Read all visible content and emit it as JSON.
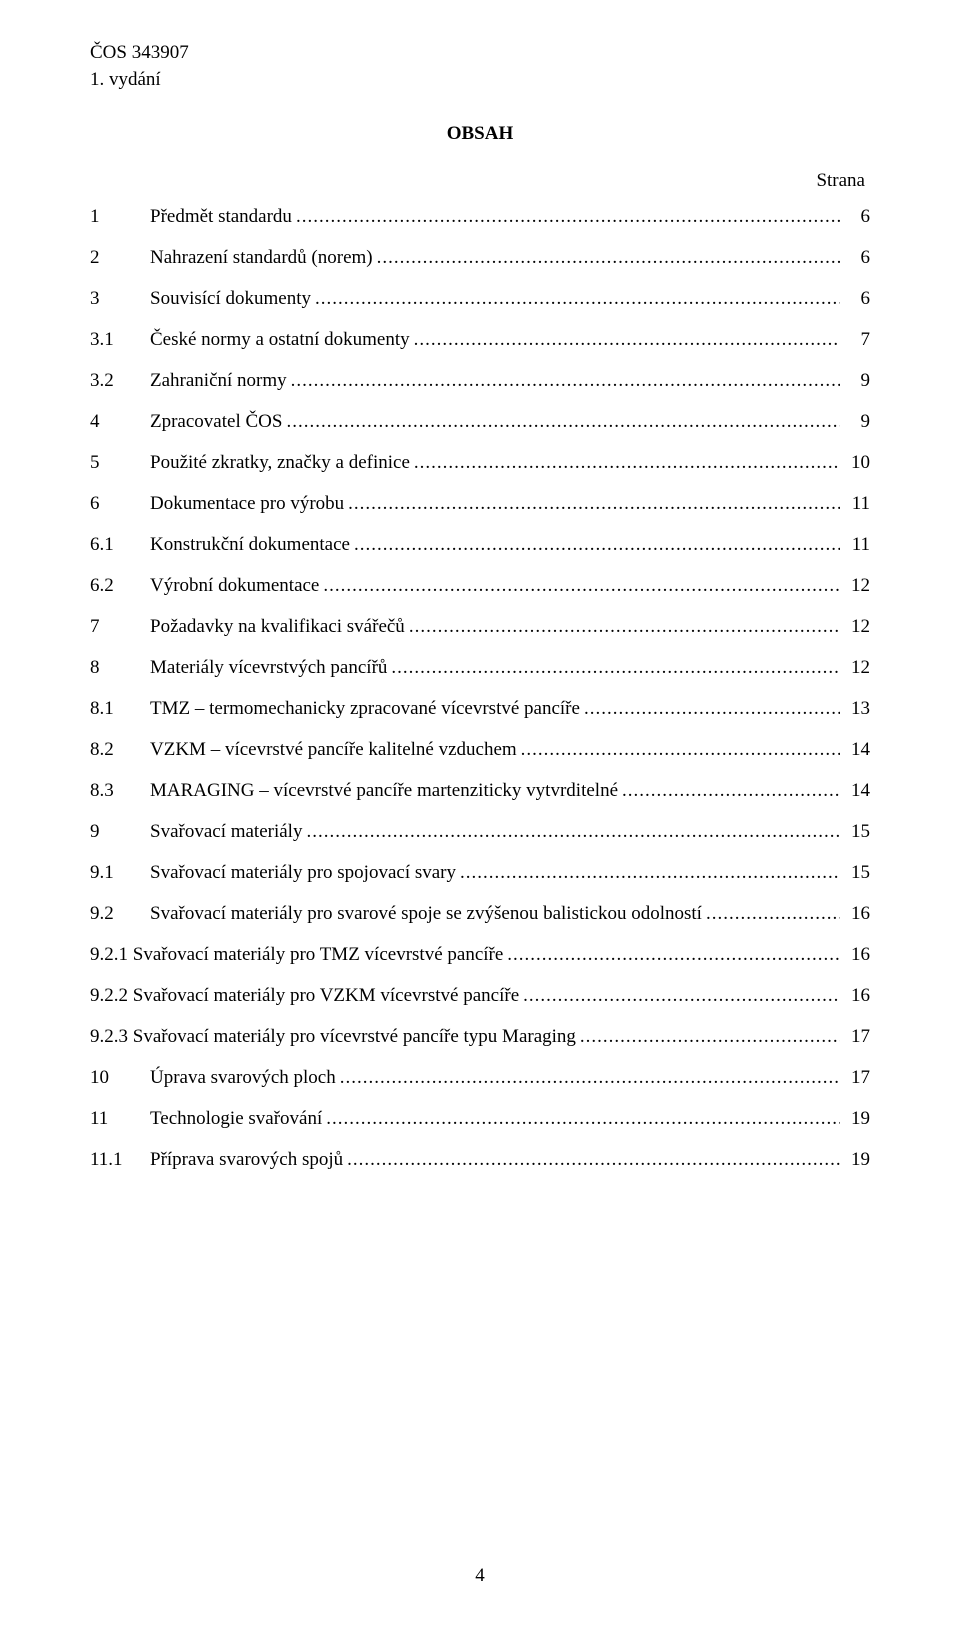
{
  "header": {
    "code": "ČOS 343907",
    "edition": "1. vydání"
  },
  "title": "OBSAH",
  "strana_label": "Strana",
  "toc": [
    {
      "num": "1",
      "label": "Předmět standardu",
      "page": "6",
      "level": 1
    },
    {
      "num": "2",
      "label": "Nahrazení standardů (norem)",
      "page": "6",
      "level": 1
    },
    {
      "num": "3",
      "label": "Souvisící dokumenty",
      "page": "6",
      "level": 1
    },
    {
      "num": "3.1",
      "label": "České normy a ostatní dokumenty",
      "page": "7",
      "level": 2
    },
    {
      "num": "3.2",
      "label": "Zahraniční normy",
      "page": "9",
      "level": 2
    },
    {
      "num": "4",
      "label": "Zpracovatel ČOS",
      "page": "9",
      "level": 1
    },
    {
      "num": "5",
      "label": "Použité zkratky, značky a definice",
      "page": "10",
      "level": 1
    },
    {
      "num": "6",
      "label": "Dokumentace pro výrobu",
      "page": "11",
      "level": 1
    },
    {
      "num": "6.1",
      "label": "Konstrukční dokumentace",
      "page": "11",
      "level": 2
    },
    {
      "num": "6.2",
      "label": "Výrobní dokumentace",
      "page": "12",
      "level": 2
    },
    {
      "num": "7",
      "label": "Požadavky na kvalifikaci svářečů",
      "page": "12",
      "level": 1
    },
    {
      "num": "8",
      "label": "Materiály vícevrstvých pancířů",
      "page": "12",
      "level": 1
    },
    {
      "num": "8.1",
      "label": "TMZ – termomechanicky zpracované vícevrstvé pancíře",
      "page": "13",
      "level": 2
    },
    {
      "num": "8.2",
      "label": "VZKM – vícevrstvé pancíře kalitelné vzduchem",
      "page": "14",
      "level": 2
    },
    {
      "num": "8.3",
      "label": "MARAGING – vícevrstvé pancíře martenziticky vytvrditelné",
      "page": "14",
      "level": 2
    },
    {
      "num": "9",
      "label": "Svařovací materiály",
      "page": "15",
      "level": 1
    },
    {
      "num": "9.1",
      "label": "Svařovací materiály pro spojovací svary",
      "page": "15",
      "level": 2
    },
    {
      "num": "9.2",
      "label": "Svařovací materiály pro svarové spoje se zvýšenou balistickou odolností",
      "page": "16",
      "level": 2
    },
    {
      "num": "9.2.1",
      "label": "Svařovací materiály pro TMZ vícevrstvé pancíře",
      "page": "16",
      "level": 3
    },
    {
      "num": "9.2.2",
      "label": "Svařovací materiály pro VZKM vícevrstvé pancíře",
      "page": "16",
      "level": 3
    },
    {
      "num": "9.2.3",
      "label": "Svařovací materiály pro vícevrstvé pancíře typu Maraging",
      "page": "17",
      "level": 3
    },
    {
      "num": "10",
      "label": "Úprava svarových ploch",
      "page": "17",
      "level": 1
    },
    {
      "num": "11",
      "label": "Technologie svařování",
      "page": "19",
      "level": 1
    },
    {
      "num": "11.1",
      "label": "Příprava svarových spojů",
      "page": "19",
      "level": 2
    }
  ],
  "page_number": "4"
}
